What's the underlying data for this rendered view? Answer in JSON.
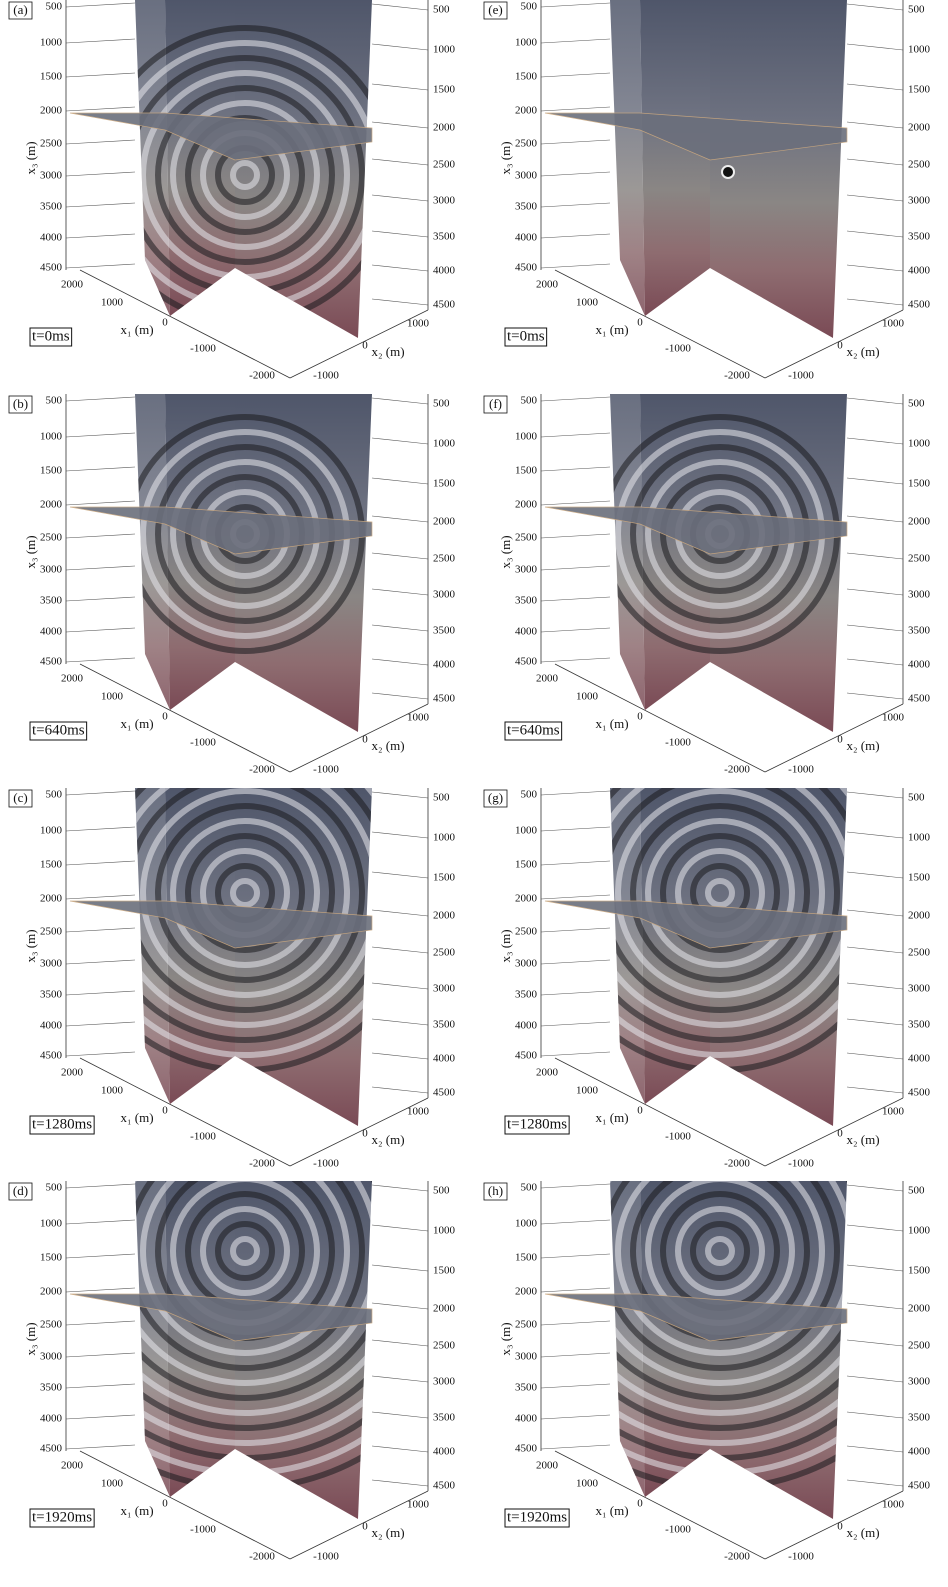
{
  "axes": {
    "x3_label": "x₃ (m)",
    "x1_label": "x₁ (m)",
    "x2_label": "x₂ (m)",
    "x3_ticks_left": [
      500,
      1000,
      1500,
      2000,
      2500,
      3000,
      3500,
      4000,
      4500
    ],
    "x3_ticks_right": [
      500,
      1000,
      1500,
      2000,
      2500,
      3000,
      3500,
      4000,
      4500
    ],
    "x1_ticks": [
      2000,
      1000,
      0,
      -1000,
      -2000
    ],
    "x2_ticks": [
      1000,
      0,
      -1000
    ]
  },
  "panels": [
    {
      "label": "(a)",
      "time": "t=0ms"
    },
    {
      "label": "(b)",
      "time": "t=640ms"
    },
    {
      "label": "(c)",
      "time": "t=1280ms"
    },
    {
      "label": "(d)",
      "time": "t=1920ms"
    },
    {
      "label": "(e)",
      "time": "t=0ms"
    },
    {
      "label": "(f)",
      "time": "t=640ms"
    },
    {
      "label": "(g)",
      "time": "t=1280ms"
    },
    {
      "label": "(h)",
      "time": "t=1920ms"
    }
  ]
}
